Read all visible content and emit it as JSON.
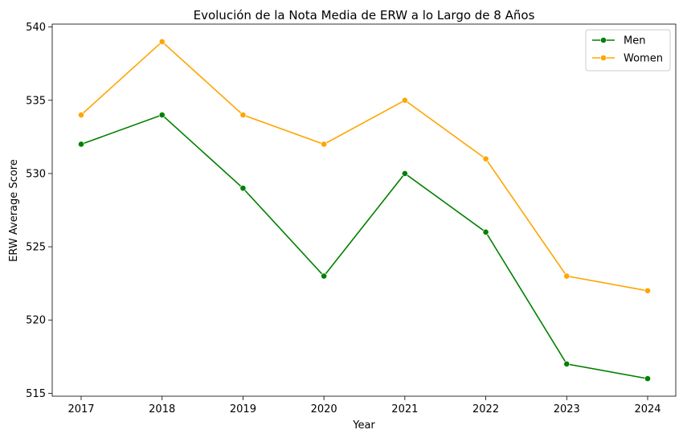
{
  "chart_data": {
    "type": "line",
    "title": "Evolución de la Nota Media de ERW a lo Largo de 8 Años",
    "xlabel": "Year",
    "ylabel": "ERW Average Score",
    "categories": [
      "2017",
      "2018",
      "2019",
      "2020",
      "2021",
      "2022",
      "2023",
      "2024"
    ],
    "yticks": [
      "515",
      "520",
      "525",
      "530",
      "535",
      "540"
    ],
    "ylim": [
      514.8,
      540.2
    ],
    "grid": false,
    "legend_position": "top-right",
    "series": [
      {
        "name": "Men",
        "color": "#008000",
        "values": [
          532,
          534,
          529,
          523,
          530,
          526,
          517,
          516
        ]
      },
      {
        "name": "Women",
        "color": "#ffa500",
        "values": [
          534,
          539,
          534,
          532,
          535,
          531,
          523,
          522
        ]
      }
    ]
  }
}
